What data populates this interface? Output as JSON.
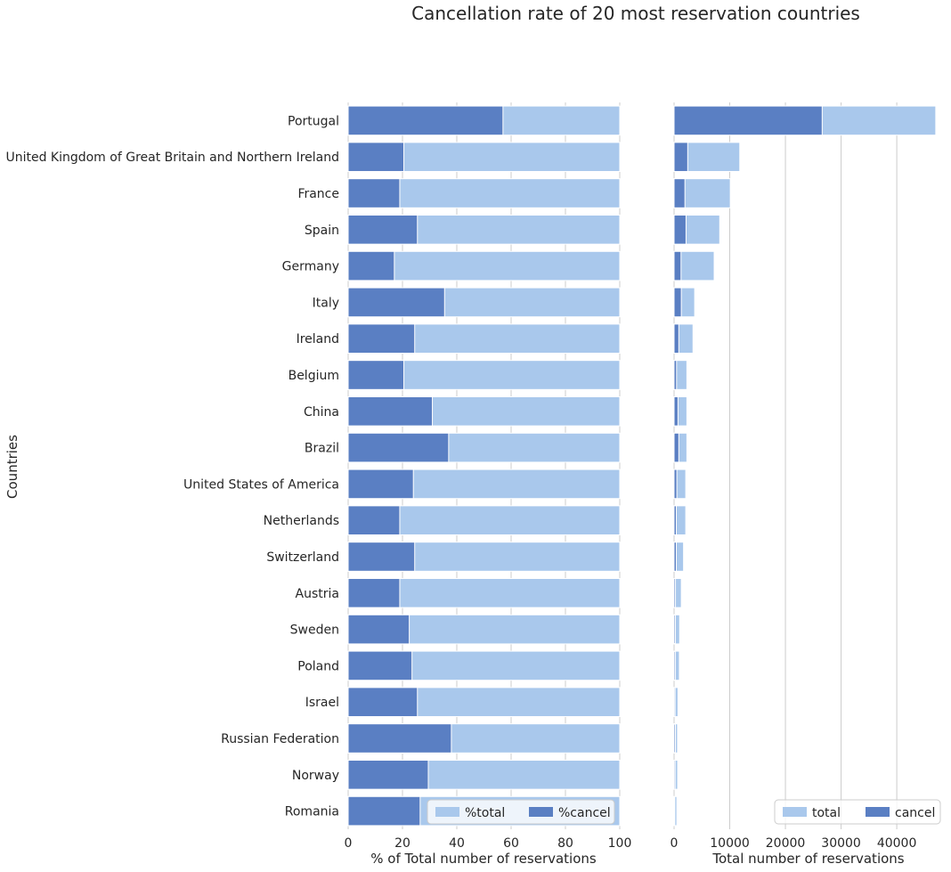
{
  "chart_data": {
    "type": "bar",
    "orientation": "horizontal",
    "title": "Cancellation rate of 20 most reservation countries",
    "ylabel": "Countries",
    "categories": [
      "Portugal",
      "United Kingdom of Great Britain and Northern Ireland",
      "France",
      "Spain",
      "Germany",
      "Italy",
      "Ireland",
      "Belgium",
      "China",
      "Brazil",
      "United States of America",
      "Netherlands",
      "Switzerland",
      "Austria",
      "Sweden",
      "Poland",
      "Israel",
      "Russian Federation",
      "Norway",
      "Romania"
    ],
    "colors": {
      "light": "#a9c8ec",
      "dark": "#5a7fc3",
      "grid": "#cccccc"
    },
    "panels": [
      {
        "xlabel": "% of Total number of reservations",
        "xlim": [
          0,
          100
        ],
        "xticks": [
          0,
          20,
          40,
          60,
          80,
          100
        ],
        "grid": "vertical",
        "legend": {
          "placement": "lower-right"
        },
        "series": [
          {
            "name": "%total",
            "color": "light",
            "values": [
              100,
              100,
              100,
              100,
              100,
              100,
              100,
              100,
              100,
              100,
              100,
              100,
              100,
              100,
              100,
              100,
              100,
              100,
              100,
              100
            ]
          },
          {
            "name": "%cancel",
            "color": "dark",
            "values": [
              57,
              20.5,
              19,
              25.5,
              17,
              35.5,
              24.5,
              20.5,
              31,
              37,
              24,
              19,
              24.5,
              19,
              22.5,
              23.5,
              25.5,
              38,
              29.5,
              26.5
            ]
          }
        ]
      },
      {
        "xlabel": "Total number of reservations",
        "xlim": [
          0,
          47500
        ],
        "xticks": [
          0,
          10000,
          20000,
          30000,
          40000
        ],
        "grid": "vertical",
        "legend": {
          "placement": "lower-right"
        },
        "series": [
          {
            "name": "total",
            "color": "light",
            "values": [
              47000,
              11800,
              10100,
              8200,
              7200,
              3700,
              3400,
              2300,
              2300,
              2300,
              2100,
              2100,
              1700,
              1300,
              1000,
              950,
              700,
              630,
              650,
              500
            ]
          },
          {
            "name": "cancel",
            "color": "dark",
            "values": [
              26600,
              2450,
              1950,
              2150,
              1250,
              1300,
              850,
              450,
              700,
              850,
              500,
              400,
              400,
              250,
              230,
              220,
              180,
              240,
              190,
              130
            ]
          }
        ]
      }
    ]
  }
}
